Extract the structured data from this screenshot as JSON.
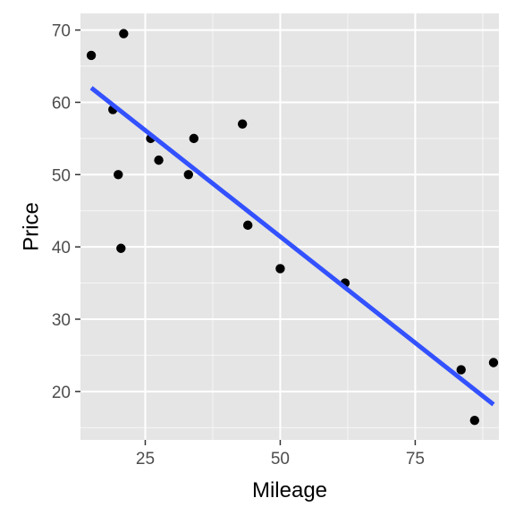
{
  "chart_data": {
    "type": "scatter",
    "title": "",
    "xlabel": "Mileage",
    "ylabel": "Price",
    "xlim": [
      13,
      90.5
    ],
    "ylim": [
      13.3,
      72.3
    ],
    "x_ticks": [
      25,
      50,
      75
    ],
    "y_ticks": [
      20,
      30,
      40,
      50,
      60,
      70
    ],
    "grid": true,
    "legend": "none",
    "points": [
      {
        "x": 15,
        "y": 66.5
      },
      {
        "x": 21,
        "y": 69.5
      },
      {
        "x": 19,
        "y": 59
      },
      {
        "x": 26,
        "y": 55
      },
      {
        "x": 20,
        "y": 50
      },
      {
        "x": 27.5,
        "y": 52
      },
      {
        "x": 34,
        "y": 55
      },
      {
        "x": 33,
        "y": 50
      },
      {
        "x": 43,
        "y": 57
      },
      {
        "x": 20.5,
        "y": 39.8
      },
      {
        "x": 44,
        "y": 43
      },
      {
        "x": 50,
        "y": 37
      },
      {
        "x": 62,
        "y": 35
      },
      {
        "x": 83.5,
        "y": 23
      },
      {
        "x": 89.5,
        "y": 24
      },
      {
        "x": 86,
        "y": 16
      }
    ],
    "fit_line": {
      "x": [
        15,
        89.5
      ],
      "y": [
        62,
        18.2
      ]
    },
    "colors": {
      "panel_background": "#e5e5e5",
      "grid_major": "#ffffff",
      "point": "#000000",
      "fit_line": "#3351ff"
    }
  }
}
